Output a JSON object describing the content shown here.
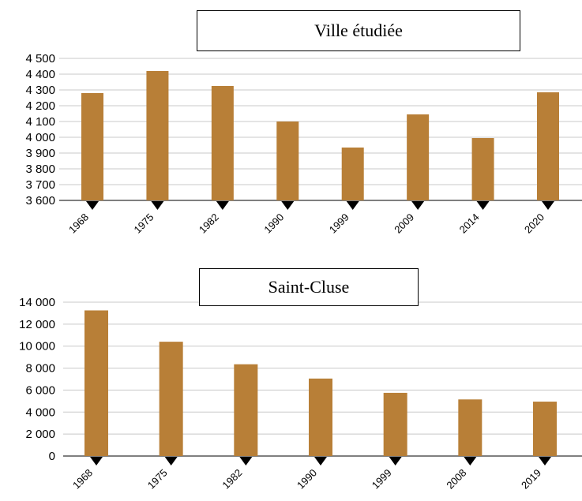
{
  "chart_data": [
    {
      "type": "bar",
      "title": "Ville étudiée",
      "categories": [
        "1968",
        "1975",
        "1982",
        "1990",
        "1999",
        "2009",
        "2014",
        "2020"
      ],
      "values": [
        4280,
        4420,
        4325,
        4100,
        3935,
        4145,
        3995,
        4285
      ],
      "ylim": [
        3600,
        4500
      ],
      "yticks": [
        3600,
        3700,
        3800,
        3900,
        4000,
        4100,
        4200,
        4300,
        4400,
        4500
      ],
      "ytick_labels": [
        "3 600",
        "3 700",
        "3 800",
        "3 900",
        "4 000",
        "4 100",
        "4 200",
        "4 300",
        "4 400",
        "4 500"
      ],
      "bar_color": "#b87f37",
      "grid": true
    },
    {
      "type": "bar",
      "title": "Saint-Cluse",
      "categories": [
        "1968",
        "1975",
        "1982",
        "1990",
        "1999",
        "2008",
        "2019"
      ],
      "values": [
        13250,
        10400,
        8350,
        7050,
        5750,
        5150,
        4950
      ],
      "ylim": [
        0,
        14000
      ],
      "yticks": [
        0,
        2000,
        4000,
        6000,
        8000,
        10000,
        12000,
        14000
      ],
      "ytick_labels": [
        "0",
        "2 000",
        "4 000",
        "6 000",
        "8 000",
        "10 000",
        "12 000",
        "14 000"
      ],
      "bar_color": "#b87f37",
      "grid": true
    }
  ]
}
